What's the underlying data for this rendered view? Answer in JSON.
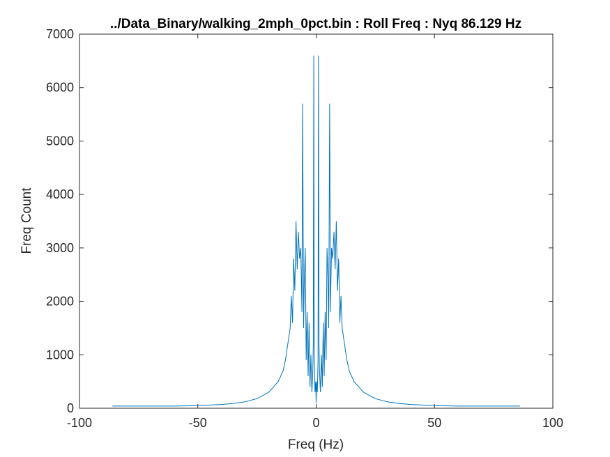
{
  "chart_data": {
    "type": "line",
    "title": "../Data_Binary/walking_2mph_0pct.bin : Roll Freq : Nyq 86.129 Hz",
    "xlabel": "Freq (Hz)",
    "ylabel": "Freq Count",
    "xlim": [
      -100,
      100
    ],
    "ylim": [
      0,
      7000
    ],
    "xticks": [
      -100,
      -50,
      0,
      50,
      100
    ],
    "yticks": [
      0,
      1000,
      2000,
      3000,
      4000,
      5000,
      6000,
      7000
    ],
    "xtick_labels": [
      "-100",
      "-50",
      "0",
      "50",
      "100"
    ],
    "ytick_labels": [
      "0",
      "1000",
      "2000",
      "3000",
      "4000",
      "5000",
      "6000",
      "7000"
    ],
    "grid": false,
    "legend": "none",
    "line_color": "#0072BD",
    "series": [
      {
        "x": [
          -86.1,
          -80,
          -70,
          -60,
          -50,
          -40,
          -35,
          -30,
          -25,
          -22,
          -20,
          -18,
          -16,
          -14,
          -13,
          -12,
          -11,
          -10.5,
          -10,
          -9.5,
          -9,
          -8.5,
          -8,
          -7.5,
          -7,
          -6.5,
          -6,
          -5.7,
          -5.3,
          -5,
          -4.6,
          -4.2,
          -3.8,
          -3.4,
          -3,
          -2.6,
          -2.2,
          -1.8,
          -1.4,
          -1.2,
          -1,
          -0.8,
          -0.5,
          -0.2,
          0,
          0.2,
          0.5,
          0.8,
          1,
          1.2,
          1.4,
          1.8,
          2.2,
          2.6,
          3,
          3.4,
          3.8,
          4.2,
          4.6,
          5,
          5.3,
          5.7,
          6,
          6.5,
          7,
          7.5,
          8,
          8.5,
          9,
          9.5,
          10,
          10.5,
          11,
          12,
          13,
          14,
          16,
          18,
          20,
          22,
          25,
          30,
          35,
          40,
          50,
          60,
          70,
          80,
          86.1
        ],
        "y": [
          40,
          40,
          40,
          40,
          50,
          70,
          90,
          120,
          180,
          250,
          300,
          400,
          500,
          700,
          900,
          1200,
          1500,
          2100,
          1600,
          2800,
          2200,
          3500,
          2600,
          3300,
          2800,
          3000,
          1800,
          5700,
          1500,
          2400,
          3000,
          900,
          1800,
          600,
          1600,
          400,
          1000,
          300,
          700,
          1200,
          6600,
          900,
          300,
          500,
          100,
          500,
          300,
          900,
          6600,
          1200,
          700,
          300,
          1000,
          400,
          1600,
          600,
          1800,
          900,
          3000,
          2400,
          1500,
          5700,
          1800,
          3000,
          2800,
          3300,
          2600,
          3500,
          2200,
          2800,
          1600,
          2100,
          1500,
          1200,
          900,
          700,
          500,
          400,
          300,
          250,
          180,
          120,
          90,
          70,
          50,
          40,
          40,
          40,
          40
        ]
      }
    ]
  }
}
